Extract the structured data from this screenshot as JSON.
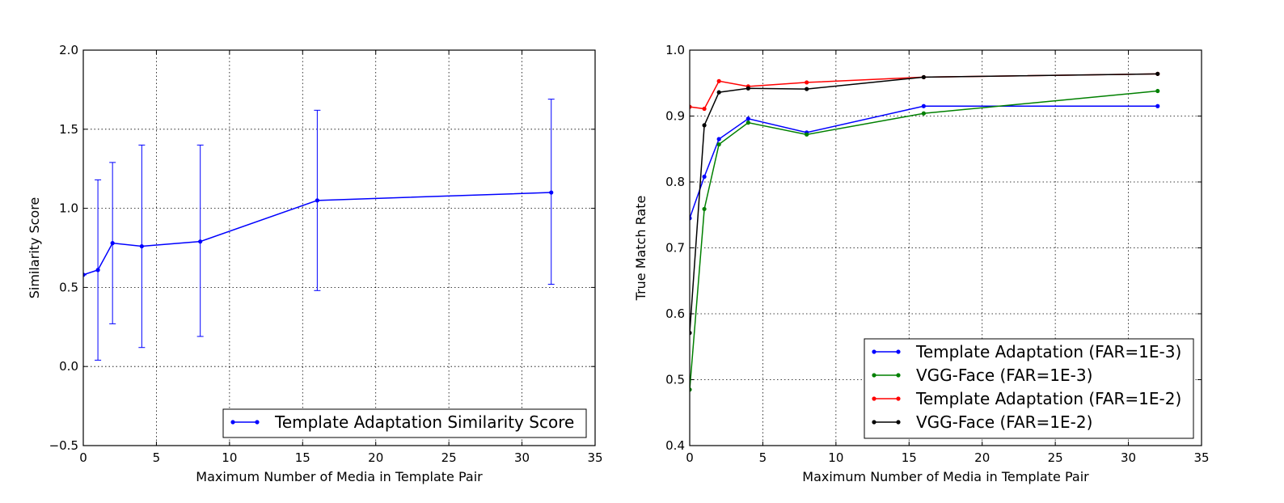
{
  "chart_data": [
    {
      "type": "line",
      "xlabel": "Maximum Number of Media in Template Pair",
      "ylabel": "Similarity Score",
      "xlim": [
        0,
        35
      ],
      "ylim": [
        -0.5,
        2.0
      ],
      "xticks": [
        0,
        5,
        10,
        15,
        20,
        25,
        30,
        35
      ],
      "yticks": [
        -0.5,
        0.0,
        0.5,
        1.0,
        1.5,
        2.0
      ],
      "xtick_labels": [
        "0",
        "5",
        "10",
        "15",
        "20",
        "25",
        "30",
        "35"
      ],
      "ytick_labels": [
        "−0.5",
        "0.0",
        "0.5",
        "1.0",
        "1.5",
        "2.0"
      ],
      "grid": true,
      "legend_position": "lower-right",
      "series": [
        {
          "name": "Template Adaptation Similarity Score",
          "color": "#0000ff",
          "x": [
            0,
            1,
            2,
            4,
            8,
            16,
            32
          ],
          "y": [
            0.58,
            0.61,
            0.78,
            0.76,
            0.79,
            1.05,
            1.1
          ],
          "error_low": [
            0.58,
            0.04,
            0.27,
            0.12,
            0.19,
            0.48,
            0.52
          ],
          "error_high": [
            0.58,
            1.18,
            1.29,
            1.4,
            1.4,
            1.62,
            1.69
          ]
        }
      ]
    },
    {
      "type": "line",
      "xlabel": "Maximum Number of Media in Template Pair",
      "ylabel": "True Match Rate",
      "xlim": [
        0,
        35
      ],
      "ylim": [
        0.4,
        1.0
      ],
      "xticks": [
        0,
        5,
        10,
        15,
        20,
        25,
        30,
        35
      ],
      "yticks": [
        0.4,
        0.5,
        0.6,
        0.7,
        0.8,
        0.9,
        1.0
      ],
      "xtick_labels": [
        "0",
        "5",
        "10",
        "15",
        "20",
        "25",
        "30",
        "35"
      ],
      "ytick_labels": [
        "0.4",
        "0.5",
        "0.6",
        "0.7",
        "0.8",
        "0.9",
        "1.0"
      ],
      "grid": true,
      "legend_position": "lower-right",
      "series": [
        {
          "name": "Template Adaptation (FAR=1E-3)",
          "color": "#0000ff",
          "x": [
            0,
            1,
            2,
            4,
            8,
            16,
            32
          ],
          "y": [
            0.745,
            0.808,
            0.865,
            0.896,
            0.875,
            0.915,
            0.915
          ]
        },
        {
          "name": "VGG-Face (FAR=1E-3)",
          "color": "#008000",
          "x": [
            0,
            1,
            2,
            4,
            8,
            16,
            32
          ],
          "y": [
            0.485,
            0.759,
            0.857,
            0.89,
            0.872,
            0.904,
            0.938
          ]
        },
        {
          "name": "Template Adaptation (FAR=1E-2)",
          "color": "#ff0000",
          "x": [
            0,
            1,
            2,
            4,
            8,
            16,
            32
          ],
          "y": [
            0.914,
            0.911,
            0.953,
            0.945,
            0.951,
            0.959,
            0.964
          ]
        },
        {
          "name": "VGG-Face (FAR=1E-2)",
          "color": "#000000",
          "x": [
            0,
            1,
            2,
            4,
            8,
            16,
            32
          ],
          "y": [
            0.571,
            0.886,
            0.936,
            0.942,
            0.941,
            0.959,
            0.964
          ]
        }
      ]
    }
  ]
}
